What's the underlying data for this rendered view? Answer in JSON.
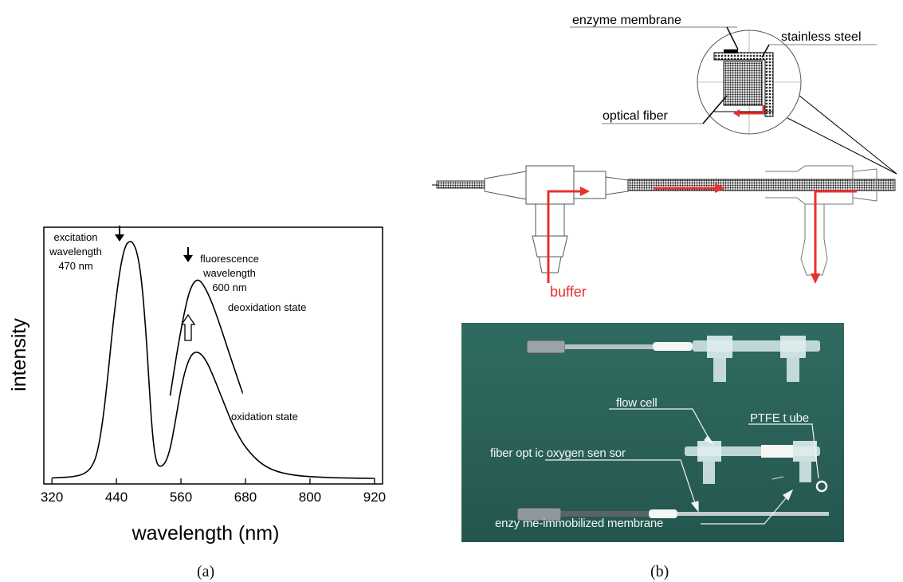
{
  "figure": {
    "panel_a_label": "(a)",
    "panel_b_label": "(b)"
  },
  "chart_data": {
    "type": "line",
    "xlabel": "wavelength (nm)",
    "ylabel": "intensity",
    "xlim": [
      305,
      935
    ],
    "ylim": [
      0,
      1.0
    ],
    "xticks": [
      320,
      440,
      560,
      680,
      800,
      920
    ],
    "grid": false,
    "series": [
      {
        "name": "",
        "x": [
          320,
          340,
          360,
          380,
          395,
          405,
          415,
          425,
          435,
          445,
          452,
          458,
          462,
          466,
          470,
          478,
          486,
          494,
          500,
          505,
          510,
          515,
          520,
          530,
          540,
          550,
          560,
          570,
          580,
          590,
          600,
          610,
          620,
          630,
          640,
          650,
          660,
          670,
          680,
          700,
          720,
          740,
          760,
          780,
          800,
          820,
          840,
          860,
          880,
          900,
          920
        ],
        "y": [
          0.005,
          0.007,
          0.01,
          0.02,
          0.05,
          0.11,
          0.24,
          0.44,
          0.66,
          0.83,
          0.915,
          0.955,
          0.965,
          0.968,
          0.965,
          0.93,
          0.83,
          0.63,
          0.42,
          0.24,
          0.12,
          0.065,
          0.05,
          0.06,
          0.12,
          0.24,
          0.37,
          0.46,
          0.51,
          0.52,
          0.505,
          0.47,
          0.42,
          0.365,
          0.31,
          0.255,
          0.205,
          0.165,
          0.13,
          0.08,
          0.048,
          0.03,
          0.02,
          0.014,
          0.01,
          0.008,
          0.006,
          0.005,
          0.004,
          0.004,
          0.003
        ]
      },
      {
        "name": "",
        "x": [
          540,
          555,
          570,
          580,
          590,
          600,
          615,
          630,
          645,
          660,
          675
        ],
        "y": [
          0.34,
          0.55,
          0.72,
          0.79,
          0.815,
          0.8,
          0.735,
          0.645,
          0.545,
          0.445,
          0.35
        ]
      }
    ],
    "annotations": {
      "excitation": [
        "excitation",
        "wavelength",
        "470 nm"
      ],
      "fluorescence": [
        "fluorescence",
        "wavelength",
        "600 nm"
      ],
      "deoxidation": "deoxidation state",
      "oxidation": "oxidation state"
    }
  },
  "diagram": {
    "labels": {
      "enzyme_membrane": "enzyme membrane",
      "stainless_steel": "stainless steel",
      "optical_fiber": "optical  fiber",
      "buffer": "buffer"
    },
    "colors": {
      "flow": "#e8302c",
      "line": "#333333"
    }
  },
  "photo": {
    "labels": {
      "flow_cell": "flow cell",
      "ptfe_tube": "PTFE t ube",
      "oxygen_sensor": "fiber opt ic oxygen sen sor",
      "membrane": "enzy me-immobilized membrane"
    },
    "background": "#2b635a"
  }
}
